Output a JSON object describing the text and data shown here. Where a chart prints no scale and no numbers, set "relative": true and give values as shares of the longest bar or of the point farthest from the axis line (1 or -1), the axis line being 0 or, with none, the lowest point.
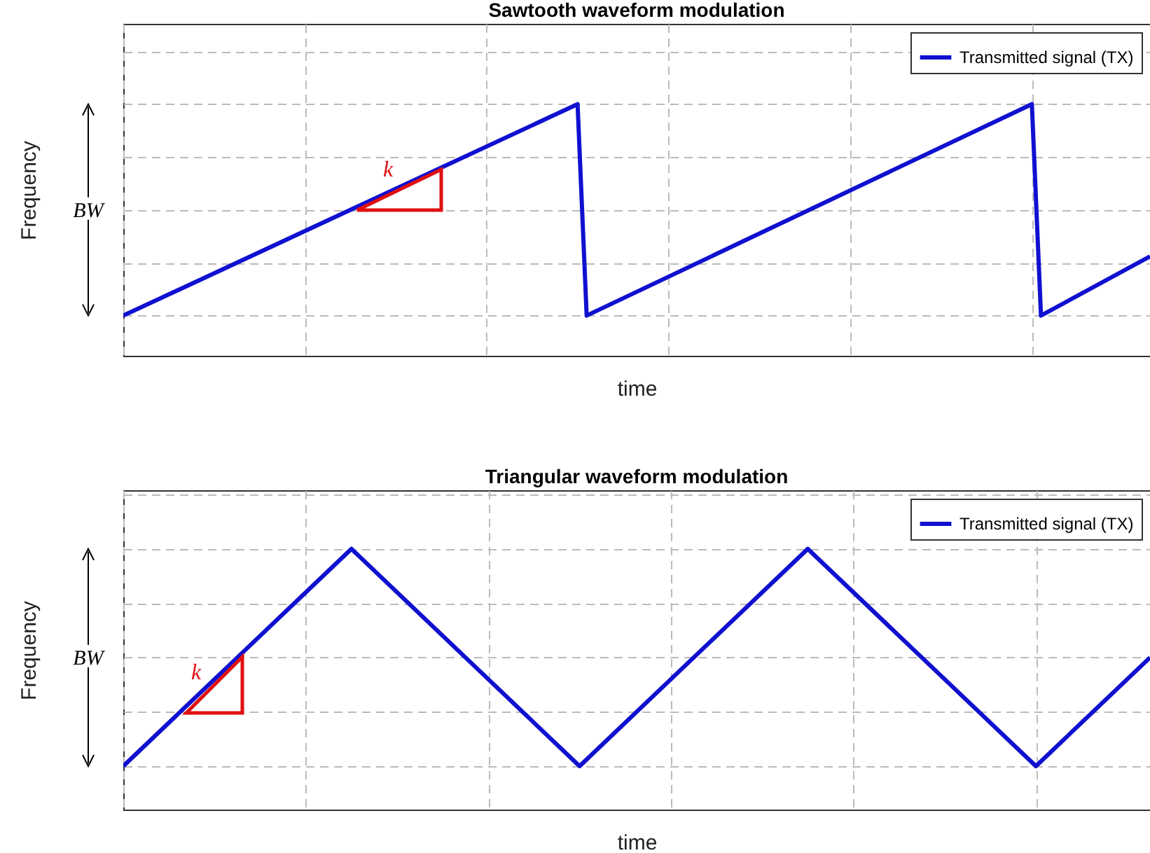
{
  "chart_data": [
    {
      "type": "line",
      "title": "Sawtooth waveform modulation",
      "xlabel": "time",
      "ylabel": "Frequency",
      "relative": true,
      "grid": true,
      "legend": "top right",
      "annotations": [
        "BW",
        "k"
      ],
      "categories": [
        null,
        null,
        null,
        null,
        null,
        null,
        null,
        null,
        null,
        null,
        null,
        null,
        null,
        null,
        null,
        null,
        null,
        null,
        null,
        null,
        null,
        null,
        null,
        null,
        null,
        null,
        null,
        null,
        null,
        null,
        null,
        null,
        null,
        null,
        null,
        null,
        null,
        null,
        null,
        null,
        null,
        null,
        null,
        null,
        null,
        null,
        null,
        null,
        null,
        null,
        null,
        null,
        null,
        null,
        null,
        null,
        null,
        null,
        null,
        null,
        null,
        null,
        null,
        null,
        null,
        null,
        null,
        null,
        null,
        null,
        null,
        null,
        null,
        null,
        null,
        null,
        null,
        null,
        null,
        null,
        null,
        null,
        null,
        null,
        null,
        null,
        null,
        null,
        null,
        null,
        null,
        null,
        null,
        null,
        null,
        null,
        null,
        null,
        null,
        null,
        null,
        null,
        null,
        null,
        null,
        null,
        null,
        null,
        null,
        null,
        null,
        null,
        null,
        null
      ],
      "series": [
        {
          "name": "Transmitted signal (TX)",
          "color": "#1010d0",
          "values": [
            0,
            null,
            null,
            null,
            null,
            null,
            null,
            null,
            null,
            null,
            null,
            null,
            null,
            null,
            null,
            null,
            null,
            null,
            null,
            null,
            null,
            null,
            null,
            null,
            null,
            null,
            null,
            null,
            null,
            null,
            null,
            null,
            null,
            null,
            null,
            null,
            null,
            null,
            null,
            null,
            null,
            null,
            null,
            null,
            null,
            null,
            null,
            null,
            null,
            null,
            1,
            0,
            null,
            null,
            null,
            null,
            null,
            null,
            null,
            null,
            null,
            null,
            null,
            null,
            null,
            null,
            null,
            null,
            null,
            null,
            null,
            null,
            null,
            null,
            null,
            null,
            null,
            null,
            null,
            null,
            null,
            null,
            null,
            null,
            null,
            null,
            null,
            null,
            null,
            null,
            null,
            null,
            null,
            null,
            null,
            null,
            null,
            null,
            null,
            null,
            1,
            0,
            null,
            null,
            null,
            null,
            null,
            null,
            null,
            null,
            null,
            null,
            null,
            0.28
          ]
        }
      ]
    },
    {
      "type": "line",
      "title": "Triangular waveform modulation",
      "xlabel": "time",
      "ylabel": "Frequency",
      "relative": true,
      "categories": [
        null,
        null,
        null,
        null,
        null,
        null,
        null,
        null,
        null,
        null
      ],
      "grid": true,
      "legend": "top right",
      "annotations": [
        "BW",
        "k"
      ],
      "series": [
        {
          "name": "Transmitted signal (TX)",
          "color": "#1010d0",
          "values": [
            0,
            0.5,
            1,
            0.5,
            0,
            0.5,
            1,
            0.5,
            0,
            0.5
          ]
        }
      ]
    }
  ]
}
